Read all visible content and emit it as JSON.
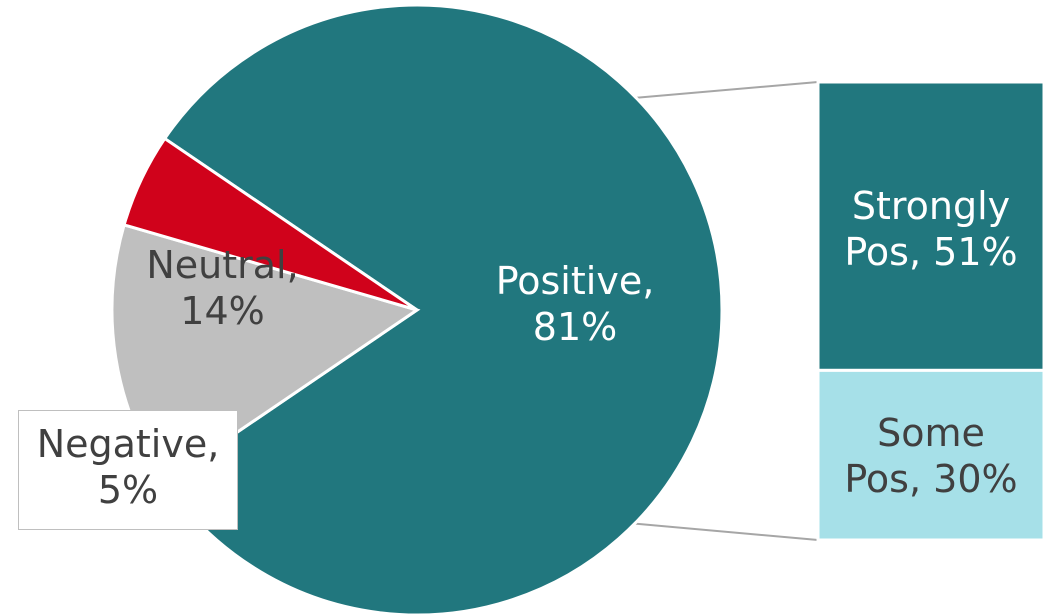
{
  "chart_data": {
    "type": "bar-of-pie",
    "pie": {
      "slices": [
        {
          "name": "Positive",
          "value": 81,
          "label": "Positive,\n81%",
          "color": "#21777e"
        },
        {
          "name": "Neutral",
          "value": 14,
          "label": "Neutral,\n14%",
          "color": "#bfbfbf"
        },
        {
          "name": "Negative",
          "value": 5,
          "label": "Negative,\n5%",
          "color": "#d0021b"
        }
      ]
    },
    "bar": {
      "parent": "Positive",
      "segments": [
        {
          "name": "Strongly Pos",
          "value": 51,
          "label": "Strongly\nPos, 51%",
          "color": "#21777e"
        },
        {
          "name": "Some Pos",
          "value": 30,
          "label": "Some\nPos, 30%",
          "color": "#a6e0e8"
        }
      ]
    },
    "title": "",
    "legend": "none",
    "connector_color": "#a6a6a6"
  }
}
